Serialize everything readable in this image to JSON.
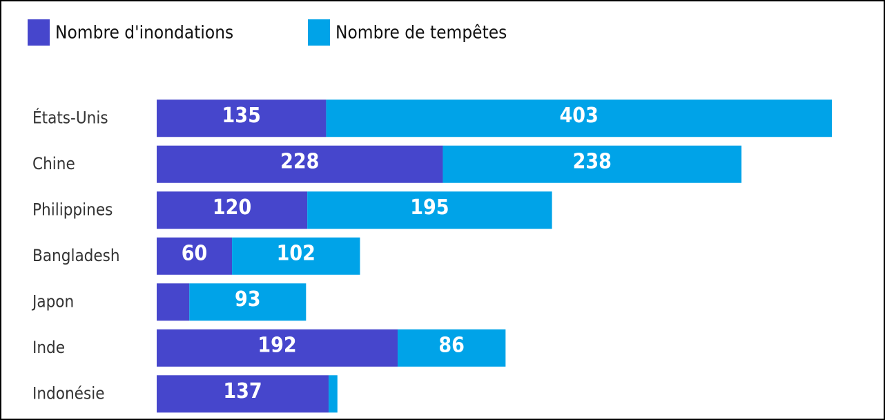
{
  "chart_data": {
    "type": "stacked-bar-horizontal",
    "categories": [
      "États-Unis",
      "Chine",
      "Philippines",
      "Bangladesh",
      "Japon",
      "Inde",
      "Indonésie"
    ],
    "series": [
      {
        "name": "Nombre d'inondations",
        "color": "#4646cc",
        "values": [
          135,
          228,
          120,
          60,
          26,
          192,
          137
        ],
        "value_labels": [
          "135",
          "228",
          "120",
          "60",
          null,
          "192",
          "137"
        ]
      },
      {
        "name": "Nombre de tempêtes",
        "color": "#00a3e8",
        "values": [
          403,
          238,
          195,
          102,
          93,
          86,
          7
        ],
        "value_labels": [
          "403",
          "238",
          "195",
          "102",
          "93",
          "86",
          null
        ]
      }
    ],
    "xlim": [
      0,
      560
    ]
  }
}
